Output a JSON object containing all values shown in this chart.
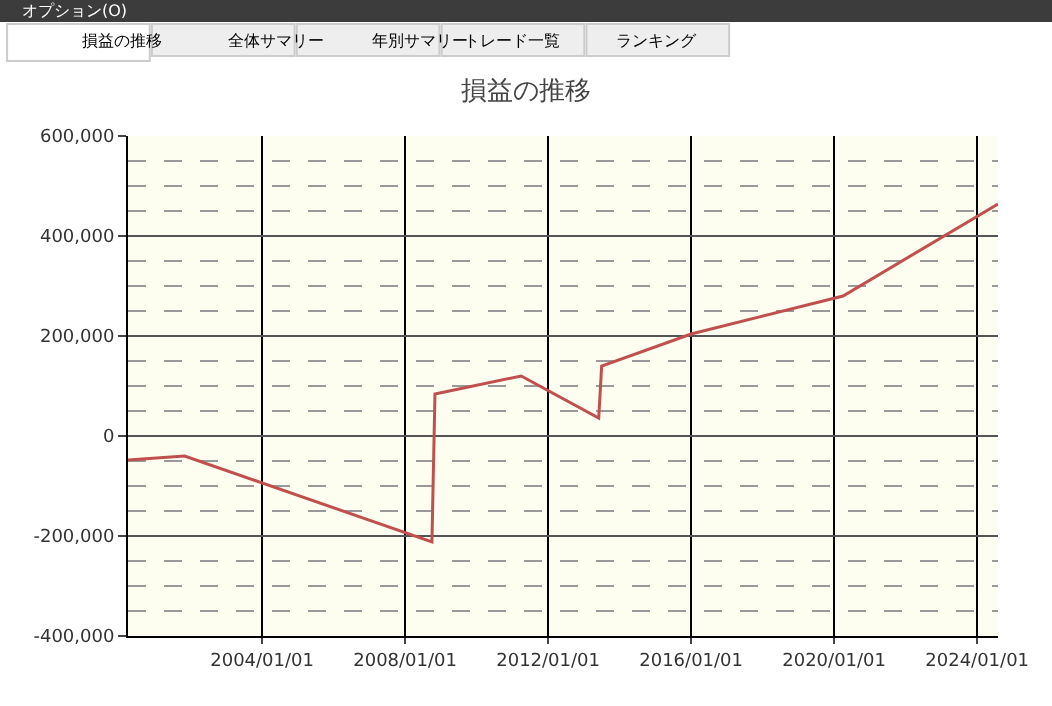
{
  "chart_data": {
    "type": "line",
    "title": "損益の推移",
    "annotations": [
      "オプション(O)",
      "損益の推移",
      "全体サマリー",
      "年別サマリー",
      "トレード一覧",
      "ランキング"
    ],
    "x": [
      "2000-04",
      "2001-11",
      "2008-10",
      "2008-11",
      "2011-04",
      "2013-06",
      "2013-07",
      "2016-01",
      "2020-04",
      "2024-08"
    ],
    "series": [
      {
        "color": "#c0504d",
        "values": [
          -48000,
          -40000,
          -212000,
          84000,
          120000,
          36000,
          140000,
          204000,
          280000,
          464000
        ]
      }
    ],
    "xlim": [
      "2000-04",
      "2024-08"
    ],
    "xticks": [
      {
        "value": "2004-01-01",
        "label": "2004/01/01"
      },
      {
        "value": "2008-01-01",
        "label": "2008/01/01"
      },
      {
        "value": "2012-01-01",
        "label": "2012/01/01"
      },
      {
        "value": "2016-01-01",
        "label": "2016/01/01"
      },
      {
        "value": "2020-01-01",
        "label": "2020/01/01"
      },
      {
        "value": "2024-01-01",
        "label": "2024/01/01"
      }
    ],
    "ylim": [
      -400000,
      600000
    ],
    "yticks": [
      {
        "value": -400000,
        "label": "-400,000"
      },
      {
        "value": -200000,
        "label": "-200,000"
      },
      {
        "value": 0,
        "label": "0"
      },
      {
        "value": 200000,
        "label": "200,000"
      },
      {
        "value": 400000,
        "label": "400,000"
      },
      {
        "value": 600000,
        "label": "600,000"
      }
    ],
    "grid": true,
    "line_style": "solid",
    "marker": "none"
  }
}
